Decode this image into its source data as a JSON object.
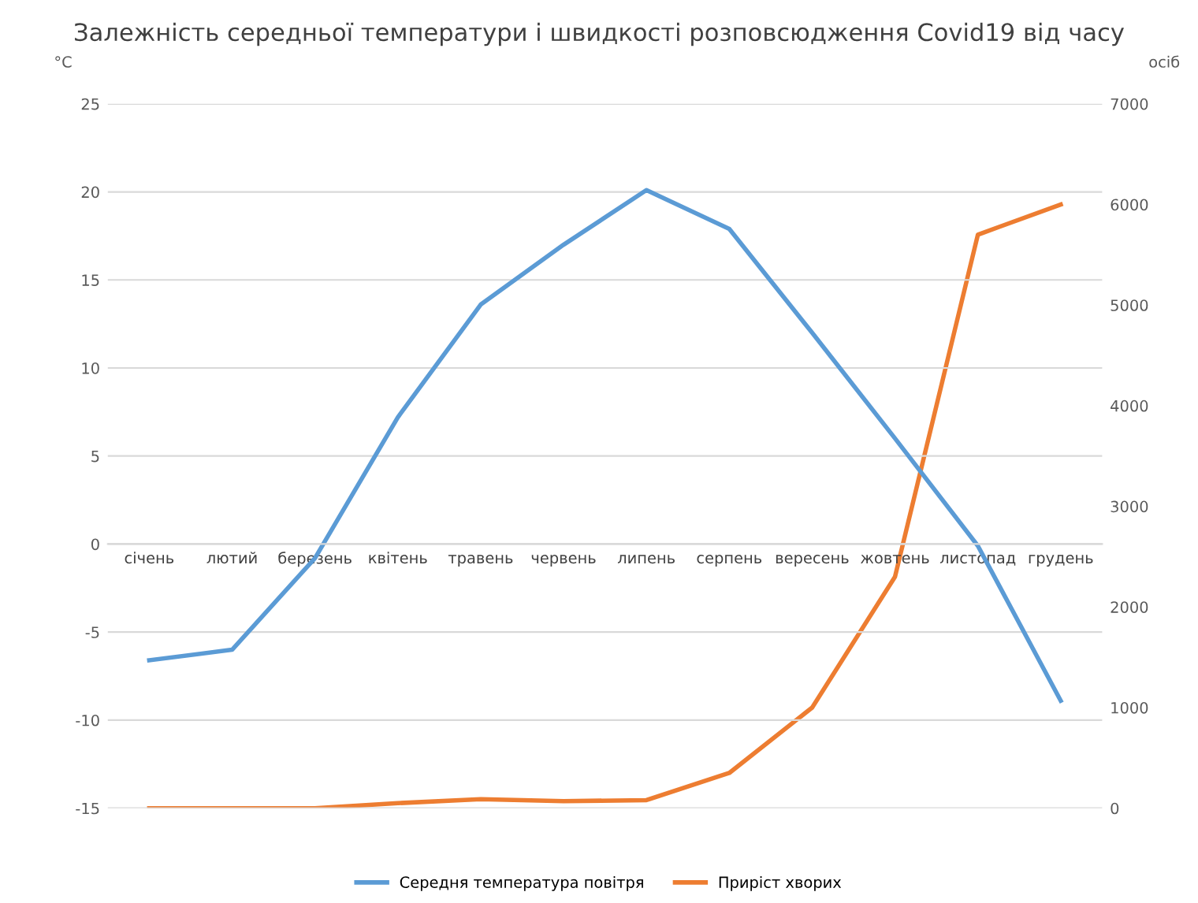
{
  "chart_data": {
    "type": "line",
    "title": "Залежність середньої температури і швидкості розповсюдження Covid19 від часу",
    "ylabel": "°C",
    "y2label": "осіб",
    "categories": [
      "січень",
      "лютий",
      "березень",
      "квітень",
      "травень",
      "червень",
      "липень",
      "серпень",
      "вересень",
      "жовтень",
      "листопад",
      "грудень"
    ],
    "series": [
      {
        "name": "Середня температура повітря",
        "color": "#5b9bd5",
        "values": [
          -6.6,
          -6.0,
          -0.8,
          7.2,
          13.6,
          17.0,
          20.1,
          17.9,
          12.0,
          6.0,
          -0.1,
          -8.9
        ]
      },
      {
        "name": "Приріст хворих",
        "color": "#ed7d31",
        "axis": "y2",
        "values": [
          0,
          0,
          0,
          50,
          90,
          70,
          80,
          350,
          1000,
          2300,
          5700,
          6000
        ]
      }
    ],
    "ylim": [
      -15,
      25
    ],
    "yticks": [
      -15,
      -10,
      -5,
      0,
      5,
      10,
      15,
      20,
      25
    ],
    "y2lim": [
      0,
      7000
    ],
    "y2ticks": [
      0,
      1000,
      2000,
      3000,
      4000,
      5000,
      6000,
      7000
    ],
    "grid": "y",
    "legend": "bottom",
    "marker": "none",
    "line_style": "solid"
  }
}
